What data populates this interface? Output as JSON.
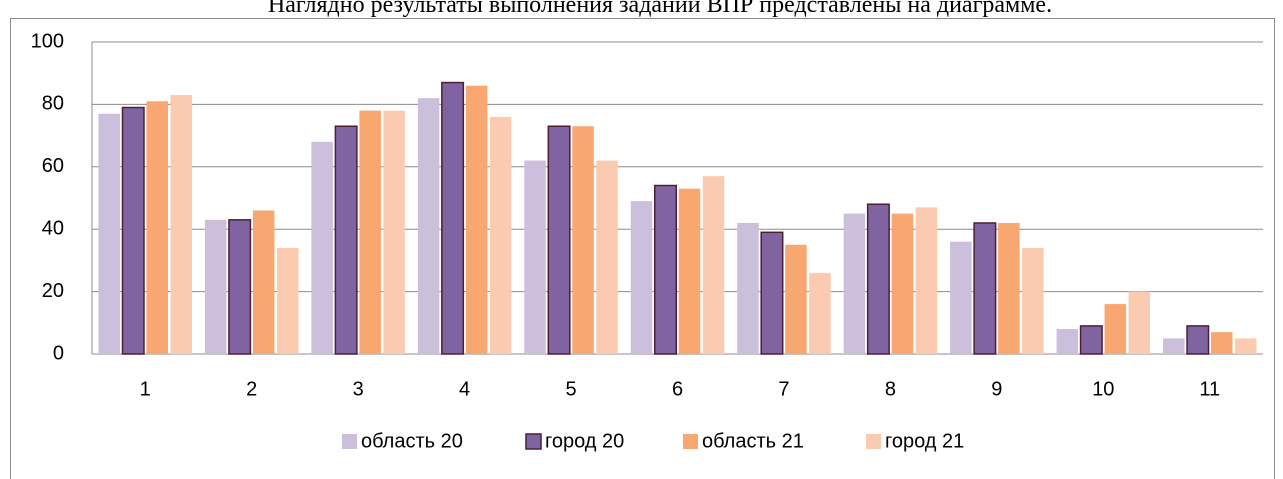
{
  "header_text": "Наглядно результаты выполнения заданий ВПР представлены на диаграмме.",
  "chart_data": {
    "type": "bar",
    "categories": [
      "1",
      "2",
      "3",
      "4",
      "5",
      "6",
      "7",
      "8",
      "9",
      "10",
      "11"
    ],
    "series": [
      {
        "name": "область 20",
        "color": "#cbbfdc",
        "values": [
          77,
          43,
          68,
          82,
          62,
          49,
          42,
          45,
          36,
          8,
          5
        ]
      },
      {
        "name": "город 20",
        "color": "#8064a2",
        "values": [
          79,
          43,
          73,
          87,
          73,
          54,
          39,
          48,
          42,
          9,
          9
        ]
      },
      {
        "name": "область 21",
        "color": "#f7a76f",
        "values": [
          81,
          46,
          78,
          86,
          73,
          53,
          35,
          45,
          42,
          16,
          7
        ]
      },
      {
        "name": "город 21",
        "color": "#fbcbb1",
        "values": [
          83,
          34,
          78,
          76,
          62,
          57,
          26,
          47,
          34,
          20,
          5
        ]
      }
    ],
    "ylim": [
      0,
      100
    ],
    "yticks": [
      0,
      20,
      40,
      60,
      80,
      100
    ],
    "grid": true,
    "legend": "bottom"
  }
}
